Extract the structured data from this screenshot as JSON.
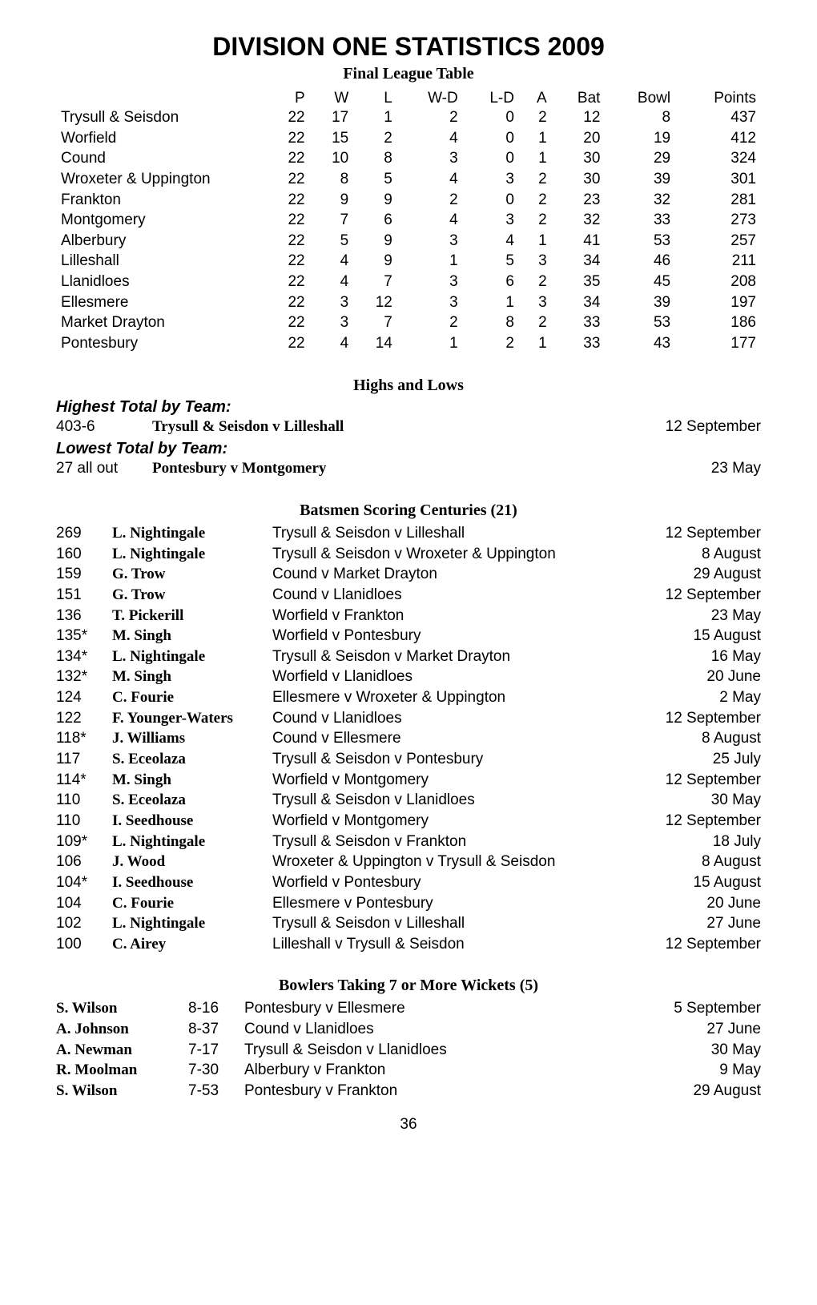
{
  "title": "DIVISION ONE STATISTICS 2009",
  "subtitle": "Final League Table",
  "league": {
    "headers": [
      "P",
      "W",
      "L",
      "W-D",
      "L-D",
      "A",
      "Bat",
      "Bowl",
      "Points"
    ],
    "rows": [
      {
        "team": "Trysull & Seisdon",
        "p": 22,
        "w": 17,
        "l": 1,
        "wd": 2,
        "ld": 0,
        "a": 2,
        "bat": 12,
        "bowl": 8,
        "pts": 437
      },
      {
        "team": "Worfield",
        "p": 22,
        "w": 15,
        "l": 2,
        "wd": 4,
        "ld": 0,
        "a": 1,
        "bat": 20,
        "bowl": 19,
        "pts": 412
      },
      {
        "team": "Cound",
        "p": 22,
        "w": 10,
        "l": 8,
        "wd": 3,
        "ld": 0,
        "a": 1,
        "bat": 30,
        "bowl": 29,
        "pts": 324
      },
      {
        "team": "Wroxeter & Uppington",
        "p": 22,
        "w": 8,
        "l": 5,
        "wd": 4,
        "ld": 3,
        "a": 2,
        "bat": 30,
        "bowl": 39,
        "pts": 301
      },
      {
        "team": "Frankton",
        "p": 22,
        "w": 9,
        "l": 9,
        "wd": 2,
        "ld": 0,
        "a": 2,
        "bat": 23,
        "bowl": 32,
        "pts": 281
      },
      {
        "team": "Montgomery",
        "p": 22,
        "w": 7,
        "l": 6,
        "wd": 4,
        "ld": 3,
        "a": 2,
        "bat": 32,
        "bowl": 33,
        "pts": 273
      },
      {
        "team": "Alberbury",
        "p": 22,
        "w": 5,
        "l": 9,
        "wd": 3,
        "ld": 4,
        "a": 1,
        "bat": 41,
        "bowl": 53,
        "pts": 257
      },
      {
        "team": "Lilleshall",
        "p": 22,
        "w": 4,
        "l": 9,
        "wd": 1,
        "ld": 5,
        "a": 3,
        "bat": 34,
        "bowl": 46,
        "pts": 211
      },
      {
        "team": "Llanidloes",
        "p": 22,
        "w": 4,
        "l": 7,
        "wd": 3,
        "ld": 6,
        "a": 2,
        "bat": 35,
        "bowl": 45,
        "pts": 208
      },
      {
        "team": "Ellesmere",
        "p": 22,
        "w": 3,
        "l": 12,
        "wd": 3,
        "ld": 1,
        "a": 3,
        "bat": 34,
        "bowl": 39,
        "pts": 197
      },
      {
        "team": "Market Drayton",
        "p": 22,
        "w": 3,
        "l": 7,
        "wd": 2,
        "ld": 8,
        "a": 2,
        "bat": 33,
        "bowl": 53,
        "pts": 186
      },
      {
        "team": "Pontesbury",
        "p": 22,
        "w": 4,
        "l": 14,
        "wd": 1,
        "ld": 2,
        "a": 1,
        "bat": 33,
        "bowl": 43,
        "pts": 177
      }
    ]
  },
  "highs_lows_heading": "Highs and Lows",
  "highest_label": "Highest Total by Team:",
  "lowest_label": "Lowest Total by Team:",
  "highest": {
    "score": "403-6",
    "match": "Trysull & Seisdon v Lilleshall",
    "date": "12 September"
  },
  "lowest": {
    "score": "27 all out",
    "match": "Pontesbury v Montgomery",
    "date": "23 May"
  },
  "centuries_heading": "Batsmen Scoring Centuries (21)",
  "centuries": [
    {
      "score": "269",
      "player": "L. Nightingale",
      "match": "Trysull & Seisdon v Lilleshall",
      "date": "12 September"
    },
    {
      "score": "160",
      "player": "L. Nightingale",
      "match": "Trysull & Seisdon v Wroxeter & Uppington",
      "date": "8 August"
    },
    {
      "score": "159",
      "player": "G. Trow",
      "match": "Cound v Market Drayton",
      "date": "29 August"
    },
    {
      "score": "151",
      "player": "G. Trow",
      "match": "Cound v Llanidloes",
      "date": "12 September"
    },
    {
      "score": "136",
      "player": "T. Pickerill",
      "match": "Worfield v Frankton",
      "date": "23 May"
    },
    {
      "score": "135*",
      "player": "M. Singh",
      "match": "Worfield v Pontesbury",
      "date": "15 August"
    },
    {
      "score": "134*",
      "player": "L. Nightingale",
      "match": "Trysull & Seisdon v Market Drayton",
      "date": "16 May"
    },
    {
      "score": "132*",
      "player": "M. Singh",
      "match": "Worfield v Llanidloes",
      "date": "20 June"
    },
    {
      "score": "124",
      "player": "C. Fourie",
      "match": "Ellesmere v Wroxeter & Uppington",
      "date": "2 May"
    },
    {
      "score": "122",
      "player": "F. Younger-Waters",
      "match": "Cound v Llanidloes",
      "date": "12 September"
    },
    {
      "score": "118*",
      "player": "J. Williams",
      "match": "Cound v Ellesmere",
      "date": "8 August"
    },
    {
      "score": "117",
      "player": "S. Eceolaza",
      "match": "Trysull & Seisdon v Pontesbury",
      "date": "25 July"
    },
    {
      "score": "114*",
      "player": "M. Singh",
      "match": "Worfield v Montgomery",
      "date": "12 September"
    },
    {
      "score": "110",
      "player": "S. Eceolaza",
      "match": "Trysull & Seisdon v Llanidloes",
      "date": "30 May"
    },
    {
      "score": "110",
      "player": "I. Seedhouse",
      "match": "Worfield v Montgomery",
      "date": "12 September"
    },
    {
      "score": "109*",
      "player": "L. Nightingale",
      "match": "Trysull & Seisdon v Frankton",
      "date": "18 July"
    },
    {
      "score": "106",
      "player": "J. Wood",
      "match": "Wroxeter & Uppington v Trysull & Seisdon",
      "date": "8 August"
    },
    {
      "score": "104*",
      "player": "I. Seedhouse",
      "match": "Worfield v Pontesbury",
      "date": "15 August"
    },
    {
      "score": "104",
      "player": "C. Fourie",
      "match": "Ellesmere v Pontesbury",
      "date": "20 June"
    },
    {
      "score": "102",
      "player": "L. Nightingale",
      "match": "Trysull & Seisdon v Lilleshall",
      "date": "27 June"
    },
    {
      "score": "100",
      "player": "C. Airey",
      "match": "Lilleshall v Trysull & Seisdon",
      "date": "12 September"
    }
  ],
  "bowlers_heading": "Bowlers Taking 7 or More Wickets (5)",
  "bowlers": [
    {
      "player": "S. Wilson",
      "fig": "8-16",
      "match": "Pontesbury v Ellesmere",
      "date": "5 September"
    },
    {
      "player": "A. Johnson",
      "fig": "8-37",
      "match": "Cound v Llanidloes",
      "date": "27 June"
    },
    {
      "player": "A. Newman",
      "fig": "7-17",
      "match": "Trysull & Seisdon v Llanidloes",
      "date": "30 May"
    },
    {
      "player": "R. Moolman",
      "fig": "7-30",
      "match": "Alberbury v Frankton",
      "date": "9 May"
    },
    {
      "player": "S. Wilson",
      "fig": "7-53",
      "match": "Pontesbury v Frankton",
      "date": "29 August"
    }
  ],
  "pagenum": "36"
}
